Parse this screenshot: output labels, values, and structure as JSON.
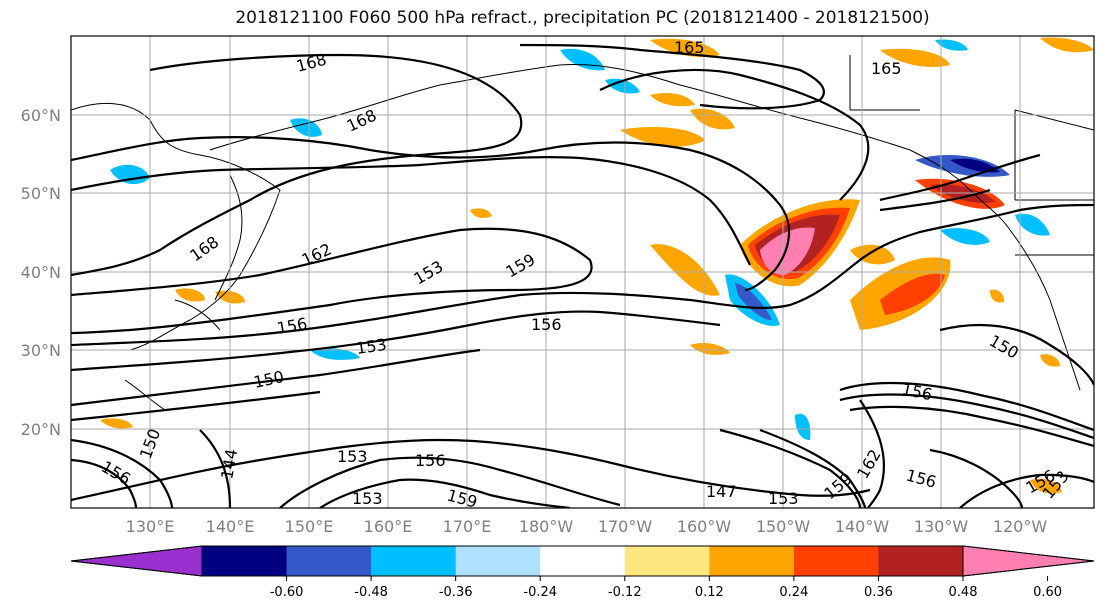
{
  "title": "2018121100 F060 500 hPa refract., precipitation PC (2018121400 - 2018121500)",
  "lat_labels": [
    "60°N",
    "50°N",
    "40°N",
    "30°N",
    "20°N"
  ],
  "lon_labels": [
    "130°E",
    "140°E",
    "150°E",
    "160°E",
    "170°E",
    "180°W",
    "170°W",
    "160°W",
    "150°W",
    "140°W",
    "130°W",
    "120°W"
  ],
  "colorbar": {
    "labels": [
      "-0.60",
      "-0.48",
      "-0.36",
      "-0.24",
      "-0.12",
      "0.12",
      "0.24",
      "0.36",
      "0.48",
      "0.60"
    ],
    "colors": [
      "#9b30d0",
      "#000080",
      "#3558c8",
      "#00bfff",
      "#b0e0ff",
      "#ffffff",
      "#ffe680",
      "#ffa500",
      "#ff4000",
      "#b22222",
      "#ff80b0"
    ]
  },
  "contour_labels": {
    "c168a": "168",
    "c165a": "165",
    "c165b": "165",
    "c168b": "168",
    "c168c": "168",
    "c162": "162",
    "c153a": "153",
    "c159a": "159",
    "c156a": "156",
    "c156b": "156",
    "c153b": "153",
    "c150a": "150",
    "c150b": "150",
    "c156c": "156",
    "c150c": "150",
    "c156d": "156",
    "c144": "144",
    "c153c": "153",
    "c156e": "156",
    "c153d": "153",
    "c159b": "159",
    "c147": "147",
    "c153e": "153",
    "c159c": "159",
    "c162b": "162",
    "c156f": "156",
    "c156g": "156",
    "c153f": "153"
  }
}
